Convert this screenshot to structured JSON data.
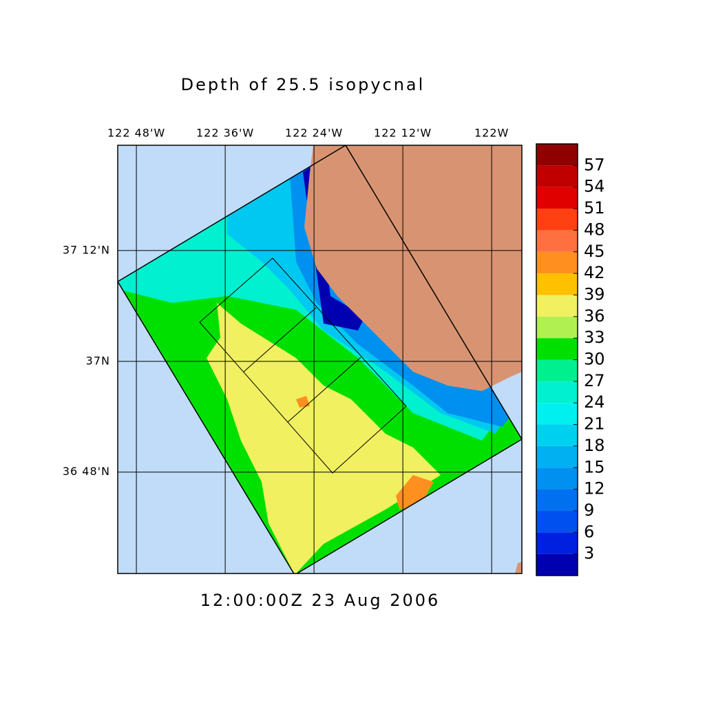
{
  "title": "Depth of 25.5 isopycnal",
  "timestamp": "12:00:00Z  23 Aug 2006",
  "map": {
    "xlim": [
      -122.842,
      -121.932
    ],
    "ylim": [
      36.617,
      37.39
    ],
    "xticks": [
      {
        "value": -122.8,
        "label": "122 48'W"
      },
      {
        "value": -122.6,
        "label": "122 36'W"
      },
      {
        "value": -122.4,
        "label": "122 24'W"
      },
      {
        "value": -122.2,
        "label": "122 12'W"
      },
      {
        "value": -122.0,
        "label": "122W"
      }
    ],
    "yticks": [
      {
        "value": 37.2,
        "label": "37 12'N"
      },
      {
        "value": 37.0,
        "label": "37N"
      },
      {
        "value": 36.8,
        "label": "36 48'N"
      }
    ]
  },
  "colorbar": {
    "levels": [
      0,
      3,
      6,
      9,
      12,
      15,
      18,
      21,
      24,
      27,
      30,
      33,
      36,
      39,
      42,
      45,
      48,
      51,
      54,
      57,
      60
    ],
    "colors": [
      "#0000b0",
      "#0020e0",
      "#0050f0",
      "#0070f0",
      "#0090f0",
      "#00b0f0",
      "#00d0f0",
      "#00f0f0",
      "#00f0d0",
      "#00f090",
      "#00e000",
      "#b0f050",
      "#f0f060",
      "#ffc000",
      "#ff9020",
      "#ff7040",
      "#ff4010",
      "#e00000",
      "#c00000",
      "#900000"
    ],
    "ticks": [
      3,
      6,
      9,
      12,
      15,
      18,
      21,
      24,
      27,
      30,
      33,
      36,
      39,
      42,
      45,
      48,
      51,
      54,
      57
    ]
  }
}
